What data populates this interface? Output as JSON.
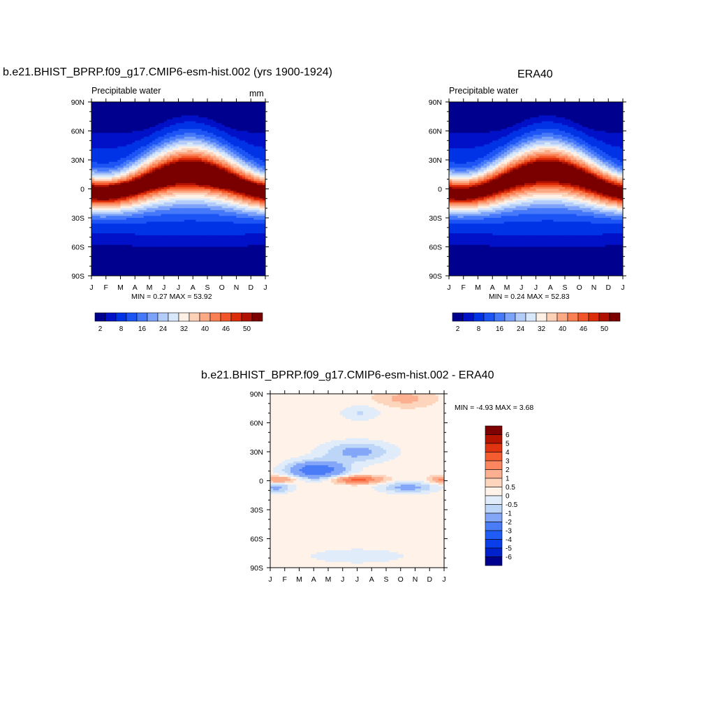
{
  "colors": {
    "seq": [
      "#00008f",
      "#0011c8",
      "#0033e6",
      "#1d55f5",
      "#4679fa",
      "#7da2fa",
      "#b3ccfa",
      "#d9e8fa",
      "#fff0e6",
      "#fdd0b8",
      "#fca985",
      "#fa7f52",
      "#f25528",
      "#dc2d08",
      "#b01100",
      "#7a0000"
    ],
    "diff": [
      "#00008f",
      "#0022cc",
      "#0a3ee8",
      "#1f5cf5",
      "#4a7cf8",
      "#83a6f8",
      "#bdd6f8",
      "#e0ecfa",
      "#fff2e8",
      "#fdd5bd",
      "#fcb090",
      "#fb8660",
      "#f55c30",
      "#e03410",
      "#b51500",
      "#7f0000"
    ]
  },
  "panels": {
    "left": {
      "title": "b.e21.BHIST_BPRP.f09_g17.CMIP6-esm-hist.002 (yrs 1900-1924)",
      "subtitle": "Precipitable water",
      "units": "mm",
      "minmax": "MIN =   0.27 MAX =   53.92"
    },
    "right": {
      "title": "ERA40",
      "subtitle": "Precipitable water",
      "minmax": "MIN =   0.24 MAX =   52.83"
    },
    "diff": {
      "title": "b.e21.BHIST_BPRP.f09_g17.CMIP6-esm-hist.002 - ERA40",
      "minmax": "MIN =  -4.93 MAX =    3.68"
    }
  },
  "chart_data": [
    {
      "type": "heatmap",
      "title": "b.e21.BHIST_BPRP.f09_g17.CMIP6-esm-hist.002 (yrs 1900-1924)",
      "subtitle": "Precipitable water",
      "units": "mm",
      "x_ticks": [
        "J",
        "F",
        "M",
        "A",
        "M",
        "J",
        "J",
        "A",
        "S",
        "O",
        "N",
        "D",
        "J"
      ],
      "y_ticks": [
        "90N",
        "60N",
        "30N",
        "0",
        "30S",
        "60S",
        "90S"
      ],
      "y_tick_values": [
        90,
        60,
        30,
        0,
        -30,
        -60,
        -90
      ],
      "x_range": [
        0,
        12
      ],
      "y_range": [
        -90,
        90
      ],
      "min": 0.27,
      "max": 53.92,
      "colorbar_labels": [
        "2",
        "8",
        "16",
        "24",
        "32",
        "40",
        "46",
        "50"
      ],
      "levels": [
        2,
        4,
        8,
        12,
        16,
        20,
        24,
        28,
        32,
        36,
        40,
        44,
        46,
        48,
        50
      ]
    },
    {
      "type": "heatmap",
      "title": "ERA40",
      "subtitle": "Precipitable water",
      "x_ticks": [
        "J",
        "F",
        "M",
        "A",
        "M",
        "J",
        "J",
        "A",
        "S",
        "O",
        "N",
        "D",
        "J"
      ],
      "y_ticks": [
        "90N",
        "60N",
        "30N",
        "0",
        "30S",
        "60S",
        "90S"
      ],
      "y_tick_values": [
        90,
        60,
        30,
        0,
        -30,
        -60,
        -90
      ],
      "x_range": [
        0,
        12
      ],
      "y_range": [
        -90,
        90
      ],
      "min": 0.24,
      "max": 52.83,
      "colorbar_labels": [
        "2",
        "8",
        "16",
        "24",
        "32",
        "40",
        "46",
        "50"
      ],
      "levels": [
        2,
        4,
        8,
        12,
        16,
        20,
        24,
        28,
        32,
        36,
        40,
        44,
        46,
        48,
        50
      ]
    },
    {
      "type": "heatmap",
      "title": "b.e21.BHIST_BPRP.f09_g17.CMIP6-esm-hist.002 - ERA40",
      "x_ticks": [
        "J",
        "F",
        "M",
        "A",
        "M",
        "J",
        "J",
        "A",
        "S",
        "O",
        "N",
        "D",
        "J"
      ],
      "y_ticks": [
        "90N",
        "60N",
        "30N",
        "0",
        "30S",
        "60S",
        "90S"
      ],
      "y_tick_values": [
        90,
        60,
        30,
        0,
        -30,
        -60,
        -90
      ],
      "x_range": [
        0,
        12
      ],
      "y_range": [
        -90,
        90
      ],
      "min": -4.93,
      "max": 3.68,
      "colorbar_labels": [
        "6",
        "5",
        "4",
        "3",
        "2",
        "1",
        "0.5",
        "0",
        "-0.5",
        "-1",
        "-2",
        "-3",
        "-4",
        "-5",
        "-6"
      ],
      "levels": [
        -6,
        -5,
        -4,
        -3,
        -2,
        -1,
        -0.5,
        0,
        0.5,
        1,
        2,
        3,
        4,
        5,
        6
      ]
    }
  ]
}
